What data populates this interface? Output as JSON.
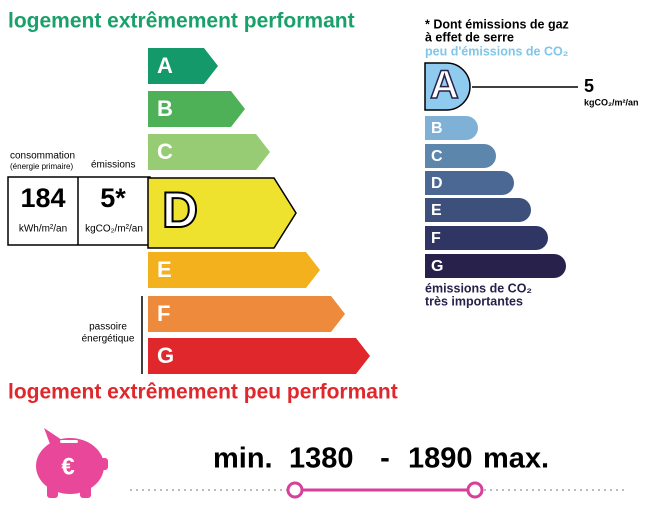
{
  "energy": {
    "top_label": "logement extrêmement performant",
    "bottom_label": "logement extrêmement peu performant",
    "classes": [
      "A",
      "B",
      "C",
      "D",
      "E",
      "F",
      "G"
    ],
    "active": "D",
    "colors": [
      "#13996a",
      "#4fb157",
      "#97cc74",
      "#efe22e",
      "#f2b11d",
      "#ee8a3b",
      "#e0282c"
    ],
    "consumption_label": "consommation",
    "consumption_sublabel": "(énergie primaire)",
    "emissions_label": "émissions",
    "consumption_value": "184",
    "consumption_unit": "kWh/m²/an",
    "emissions_value": "5*",
    "emissions_unit": "kgCO₂/m²/an",
    "poor_label_lines": [
      "passoire",
      "énergétique"
    ]
  },
  "climate": {
    "note_lines": [
      "* Dont émissions de gaz",
      "à effet de serre"
    ],
    "top_label": "peu d'émissions de CO₂",
    "classes": [
      "A",
      "B",
      "C",
      "D",
      "E",
      "F",
      "G"
    ],
    "active": "A",
    "colors": [
      "#8fcbef",
      "#7fb0d6",
      "#5d86ad",
      "#4a6893",
      "#3d4f7b",
      "#303663",
      "#27214b"
    ],
    "value": "5",
    "unit": "kgCO₂/m²/an",
    "bottom_label_lines": [
      "émissions de CO₂",
      "très importantes"
    ]
  },
  "cost": {
    "icon": "€",
    "min_label": "min.",
    "min": "1380",
    "separator": "-",
    "max": "1890",
    "max_label": "max."
  }
}
